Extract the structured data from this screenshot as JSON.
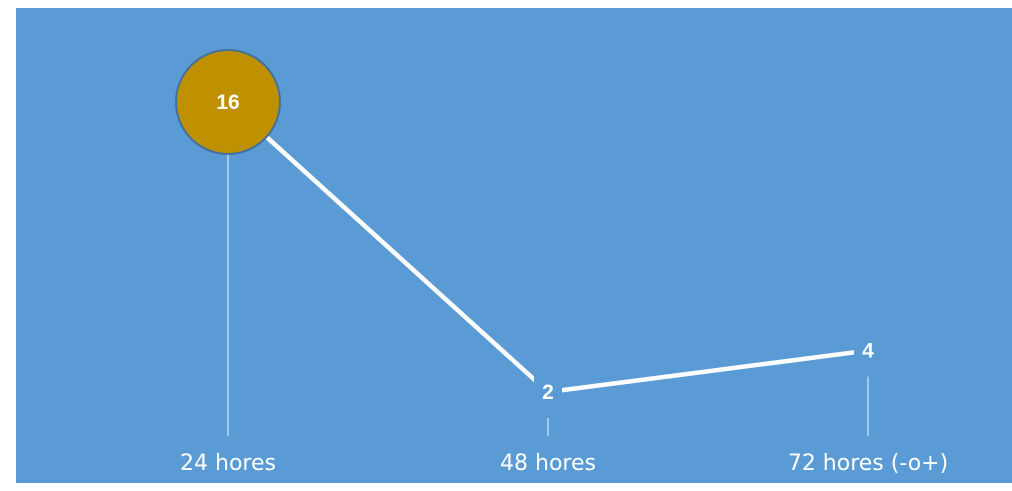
{
  "chart_data": {
    "type": "line",
    "categories": [
      "24 hores",
      "48 hores",
      "72 hores (-o+)"
    ],
    "series": [
      {
        "values": [
          16,
          2,
          4
        ]
      }
    ],
    "data_labels": [
      "16",
      "2",
      "4"
    ],
    "highlighted_point": 0,
    "title": "",
    "xlabel": "",
    "ylabel": "",
    "grid": false,
    "colors": {
      "background": "#5b9bd5",
      "line": "#ffffff",
      "highlight_fill": "#bf9000",
      "highlight_stroke": "#41719c",
      "text": "#ffffff"
    }
  }
}
